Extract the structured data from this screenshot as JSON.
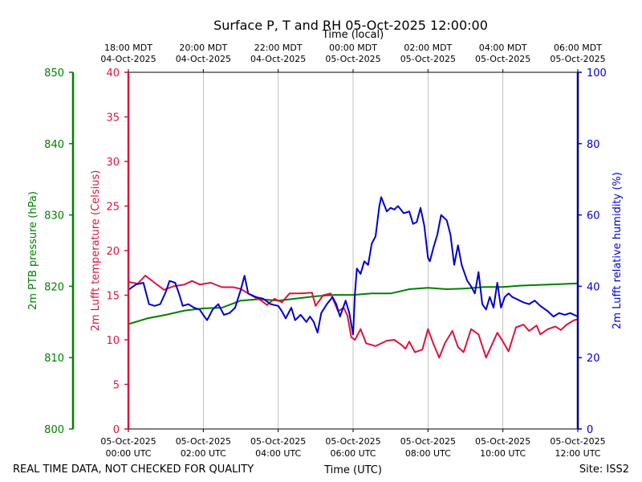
{
  "chart_data": {
    "type": "line",
    "title": "Surface P, T and RH 05-Oct-2025 12:00:00",
    "top_axis_label": "Time (local)",
    "bottom_axis_label": "Time (UTC)",
    "footer_left": "REAL TIME DATA, NOT CHECKED FOR QUALITY",
    "footer_right": "Site: ISS2",
    "x_range_hours_utc": [
      0,
      12
    ],
    "top_ticks": [
      {
        "hour": 0,
        "line1": "18:00 MDT",
        "line2": "04-Oct-2025"
      },
      {
        "hour": 2,
        "line1": "20:00 MDT",
        "line2": "04-Oct-2025"
      },
      {
        "hour": 4,
        "line1": "22:00 MDT",
        "line2": "04-Oct-2025"
      },
      {
        "hour": 6,
        "line1": "00:00 MDT",
        "line2": "05-Oct-2025"
      },
      {
        "hour": 8,
        "line1": "02:00 MDT",
        "line2": "05-Oct-2025"
      },
      {
        "hour": 10,
        "line1": "04:00 MDT",
        "line2": "05-Oct-2025"
      },
      {
        "hour": 12,
        "line1": "06:00 MDT",
        "line2": "05-Oct-2025"
      }
    ],
    "bottom_ticks": [
      {
        "hour": 0,
        "line1": "05-Oct-2025",
        "line2": "00:00 UTC"
      },
      {
        "hour": 2,
        "line1": "05-Oct-2025",
        "line2": "02:00 UTC"
      },
      {
        "hour": 4,
        "line1": "05-Oct-2025",
        "line2": "04:00 UTC"
      },
      {
        "hour": 6,
        "line1": "05-Oct-2025",
        "line2": "06:00 UTC"
      },
      {
        "hour": 8,
        "line1": "05-Oct-2025",
        "line2": "08:00 UTC"
      },
      {
        "hour": 10,
        "line1": "05-Oct-2025",
        "line2": "10:00 UTC"
      },
      {
        "hour": 12,
        "line1": "05-Oct-2025",
        "line2": "12:00 UTC"
      }
    ],
    "axes": {
      "pressure": {
        "label": "2m PTB pressure (hPa)",
        "range": [
          800,
          850
        ],
        "ticks": [
          800,
          810,
          820,
          830,
          840,
          850
        ],
        "color": "#008000"
      },
      "temperature": {
        "label": "2m Lufft temperature (Celsius)",
        "range": [
          0,
          40
        ],
        "ticks": [
          0,
          5,
          10,
          15,
          20,
          25,
          30,
          35,
          40
        ],
        "color": "#dc143c"
      },
      "humidity": {
        "label": "2m Lufft relative humidity (%)",
        "range": [
          0,
          100
        ],
        "ticks": [
          0,
          20,
          40,
          60,
          80,
          100
        ],
        "color": "#0000cd"
      }
    },
    "series": [
      {
        "name": "2m PTB pressure",
        "axis": "pressure",
        "color": "#008000",
        "points": [
          [
            0,
            814.7
          ],
          [
            0.5,
            815.5
          ],
          [
            1,
            816.0
          ],
          [
            1.5,
            816.6
          ],
          [
            2,
            816.9
          ],
          [
            2.5,
            817.0
          ],
          [
            3,
            818.0
          ],
          [
            3.5,
            818.2
          ],
          [
            4,
            818.0
          ],
          [
            4.5,
            818.3
          ],
          [
            5,
            818.6
          ],
          [
            5.5,
            818.8
          ],
          [
            6,
            818.8
          ],
          [
            6.5,
            819.0
          ],
          [
            7,
            819.0
          ],
          [
            7.5,
            819.6
          ],
          [
            8,
            819.8
          ],
          [
            8.5,
            819.6
          ],
          [
            9,
            819.7
          ],
          [
            9.5,
            819.9
          ],
          [
            10,
            819.9
          ],
          [
            10.5,
            820.1
          ],
          [
            11,
            820.2
          ],
          [
            11.5,
            820.3
          ],
          [
            12,
            820.4
          ]
        ]
      },
      {
        "name": "2m Lufft temperature",
        "axis": "temperature",
        "color": "#dc143c",
        "points": [
          [
            0,
            16.5
          ],
          [
            0.25,
            16.3
          ],
          [
            0.45,
            17.2
          ],
          [
            0.7,
            16.4
          ],
          [
            0.95,
            15.6
          ],
          [
            1.2,
            16.0
          ],
          [
            1.5,
            16.2
          ],
          [
            1.7,
            16.6
          ],
          [
            1.9,
            16.2
          ],
          [
            2.2,
            16.4
          ],
          [
            2.5,
            15.9
          ],
          [
            2.8,
            15.9
          ],
          [
            3.0,
            15.7
          ],
          [
            3.2,
            15.2
          ],
          [
            3.4,
            14.7
          ],
          [
            3.55,
            14.4
          ],
          [
            3.7,
            13.9
          ],
          [
            3.9,
            14.6
          ],
          [
            4.1,
            14.2
          ],
          [
            4.3,
            15.2
          ],
          [
            4.6,
            15.2
          ],
          [
            4.9,
            15.3
          ],
          [
            5.0,
            13.8
          ],
          [
            5.2,
            15.0
          ],
          [
            5.4,
            15.2
          ],
          [
            5.6,
            13.2
          ],
          [
            5.75,
            13.6
          ],
          [
            5.85,
            12.7
          ],
          [
            5.95,
            10.3
          ],
          [
            6.05,
            10.0
          ],
          [
            6.2,
            11.2
          ],
          [
            6.35,
            9.6
          ],
          [
            6.6,
            9.3
          ],
          [
            6.9,
            9.9
          ],
          [
            7.1,
            10.0
          ],
          [
            7.3,
            9.4
          ],
          [
            7.4,
            9.0
          ],
          [
            7.5,
            9.8
          ],
          [
            7.65,
            8.6
          ],
          [
            7.85,
            8.9
          ],
          [
            8.0,
            11.2
          ],
          [
            8.15,
            9.5
          ],
          [
            8.3,
            8.0
          ],
          [
            8.45,
            9.6
          ],
          [
            8.65,
            11.0
          ],
          [
            8.8,
            9.2
          ],
          [
            8.95,
            8.6
          ],
          [
            9.15,
            11.2
          ],
          [
            9.35,
            10.6
          ],
          [
            9.55,
            8.0
          ],
          [
            9.7,
            9.4
          ],
          [
            9.85,
            10.8
          ],
          [
            10.0,
            9.8
          ],
          [
            10.15,
            8.7
          ],
          [
            10.35,
            11.4
          ],
          [
            10.55,
            11.7
          ],
          [
            10.7,
            11.0
          ],
          [
            10.9,
            11.6
          ],
          [
            11.0,
            10.6
          ],
          [
            11.2,
            11.2
          ],
          [
            11.4,
            11.5
          ],
          [
            11.55,
            11.1
          ],
          [
            11.7,
            11.7
          ],
          [
            11.9,
            12.2
          ],
          [
            12,
            12.3
          ]
        ]
      },
      {
        "name": "2m Lufft relative humidity",
        "axis": "humidity",
        "color": "#0000cd",
        "points": [
          [
            0,
            39.0
          ],
          [
            0.2,
            40.5
          ],
          [
            0.4,
            41.0
          ],
          [
            0.55,
            35.0
          ],
          [
            0.7,
            34.5
          ],
          [
            0.85,
            35.0
          ],
          [
            1.0,
            38.5
          ],
          [
            1.1,
            41.5
          ],
          [
            1.25,
            41.0
          ],
          [
            1.35,
            38.0
          ],
          [
            1.45,
            34.5
          ],
          [
            1.6,
            35.0
          ],
          [
            1.75,
            34.0
          ],
          [
            1.9,
            33.5
          ],
          [
            2.0,
            32.0
          ],
          [
            2.1,
            30.5
          ],
          [
            2.25,
            33.5
          ],
          [
            2.4,
            35.0
          ],
          [
            2.55,
            32.0
          ],
          [
            2.7,
            32.5
          ],
          [
            2.85,
            34.0
          ],
          [
            3.0,
            39.0
          ],
          [
            3.1,
            43.0
          ],
          [
            3.2,
            38.0
          ],
          [
            3.4,
            37.0
          ],
          [
            3.6,
            36.5
          ],
          [
            3.8,
            35.0
          ],
          [
            4.0,
            34.5
          ],
          [
            4.1,
            33.0
          ],
          [
            4.2,
            31.0
          ],
          [
            4.35,
            34.0
          ],
          [
            4.45,
            30.5
          ],
          [
            4.6,
            32.0
          ],
          [
            4.75,
            30.0
          ],
          [
            4.85,
            31.5
          ],
          [
            4.95,
            30.0
          ],
          [
            5.05,
            27.0
          ],
          [
            5.15,
            32.5
          ],
          [
            5.3,
            35.0
          ],
          [
            5.45,
            37.0
          ],
          [
            5.55,
            35.0
          ],
          [
            5.65,
            31.5
          ],
          [
            5.8,
            36.0
          ],
          [
            5.9,
            32.5
          ],
          [
            6.0,
            26.5
          ],
          [
            6.05,
            38.0
          ],
          [
            6.1,
            45.0
          ],
          [
            6.2,
            43.5
          ],
          [
            6.3,
            47.0
          ],
          [
            6.4,
            46.0
          ],
          [
            6.5,
            52.0
          ],
          [
            6.6,
            54.0
          ],
          [
            6.7,
            62.5
          ],
          [
            6.75,
            65.0
          ],
          [
            6.9,
            61.0
          ],
          [
            7.0,
            62.0
          ],
          [
            7.1,
            61.5
          ],
          [
            7.2,
            62.5
          ],
          [
            7.35,
            60.5
          ],
          [
            7.5,
            61.0
          ],
          [
            7.6,
            57.5
          ],
          [
            7.7,
            58.0
          ],
          [
            7.8,
            62.0
          ],
          [
            7.9,
            57.0
          ],
          [
            8.0,
            48.0
          ],
          [
            8.05,
            47.0
          ],
          [
            8.15,
            51.0
          ],
          [
            8.25,
            54.5
          ],
          [
            8.35,
            60.0
          ],
          [
            8.5,
            58.5
          ],
          [
            8.6,
            54.5
          ],
          [
            8.7,
            46.0
          ],
          [
            8.8,
            51.5
          ],
          [
            8.9,
            46.0
          ],
          [
            9.05,
            41.5
          ],
          [
            9.15,
            40.0
          ],
          [
            9.25,
            38.0
          ],
          [
            9.35,
            44.0
          ],
          [
            9.45,
            35.0
          ],
          [
            9.55,
            33.5
          ],
          [
            9.65,
            37.0
          ],
          [
            9.75,
            34.0
          ],
          [
            9.85,
            41.0
          ],
          [
            9.95,
            34.0
          ],
          [
            10.05,
            37.0
          ],
          [
            10.15,
            38.0
          ],
          [
            10.25,
            37.0
          ],
          [
            10.35,
            36.5
          ],
          [
            10.45,
            36.0
          ],
          [
            10.55,
            35.5
          ],
          [
            10.7,
            35.0
          ],
          [
            10.85,
            36.0
          ],
          [
            11.0,
            34.5
          ],
          [
            11.2,
            33.0
          ],
          [
            11.35,
            31.5
          ],
          [
            11.5,
            32.5
          ],
          [
            11.65,
            32.0
          ],
          [
            11.8,
            32.5
          ],
          [
            12.0,
            31.5
          ]
        ]
      }
    ]
  }
}
